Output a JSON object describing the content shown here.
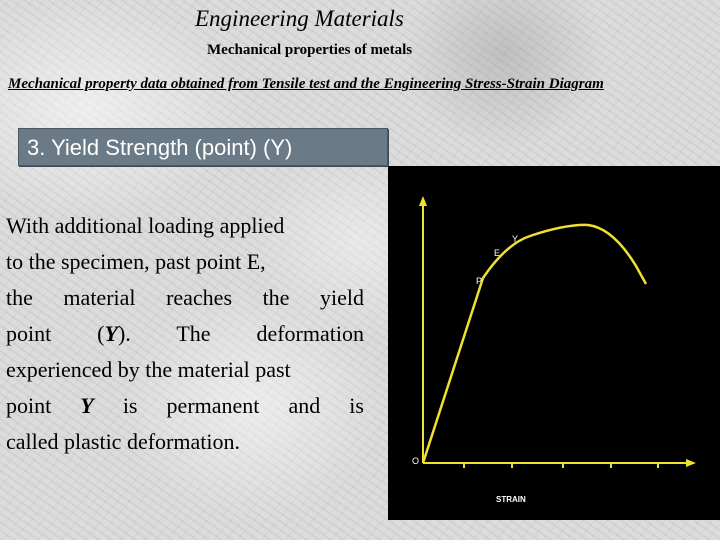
{
  "header": {
    "title": "Engineering Materials",
    "subtitle": "Mechanical properties of metals"
  },
  "section_heading": "Mechanical property data obtained from Tensile test and the Engineering Stress-Strain Diagram",
  "banner": {
    "label": "3.  Yield Strength (point) (Y)"
  },
  "body": {
    "line1": "With additional loading applied",
    "line2": "to the specimen, past point E,",
    "line3": "the material reaches the yield",
    "line4_pre": "point  (",
    "line4_em": "Y",
    "line4_post": ").  The  deformation",
    "line5": "experienced by the material past",
    "line6_pre": "point  ",
    "line6_em": "Y",
    "line6_post": "  is  permanent  and  is",
    "line7": "called plastic deformation."
  },
  "diagram": {
    "xlabel": "STRAIN",
    "origin_label": "O",
    "point_labels": {
      "P": "P",
      "E": "E",
      "Y": "Y"
    },
    "colors": {
      "background": "#000000",
      "curve": "#f0e030",
      "axis": "#f0e030",
      "label": "#ffffff"
    }
  }
}
